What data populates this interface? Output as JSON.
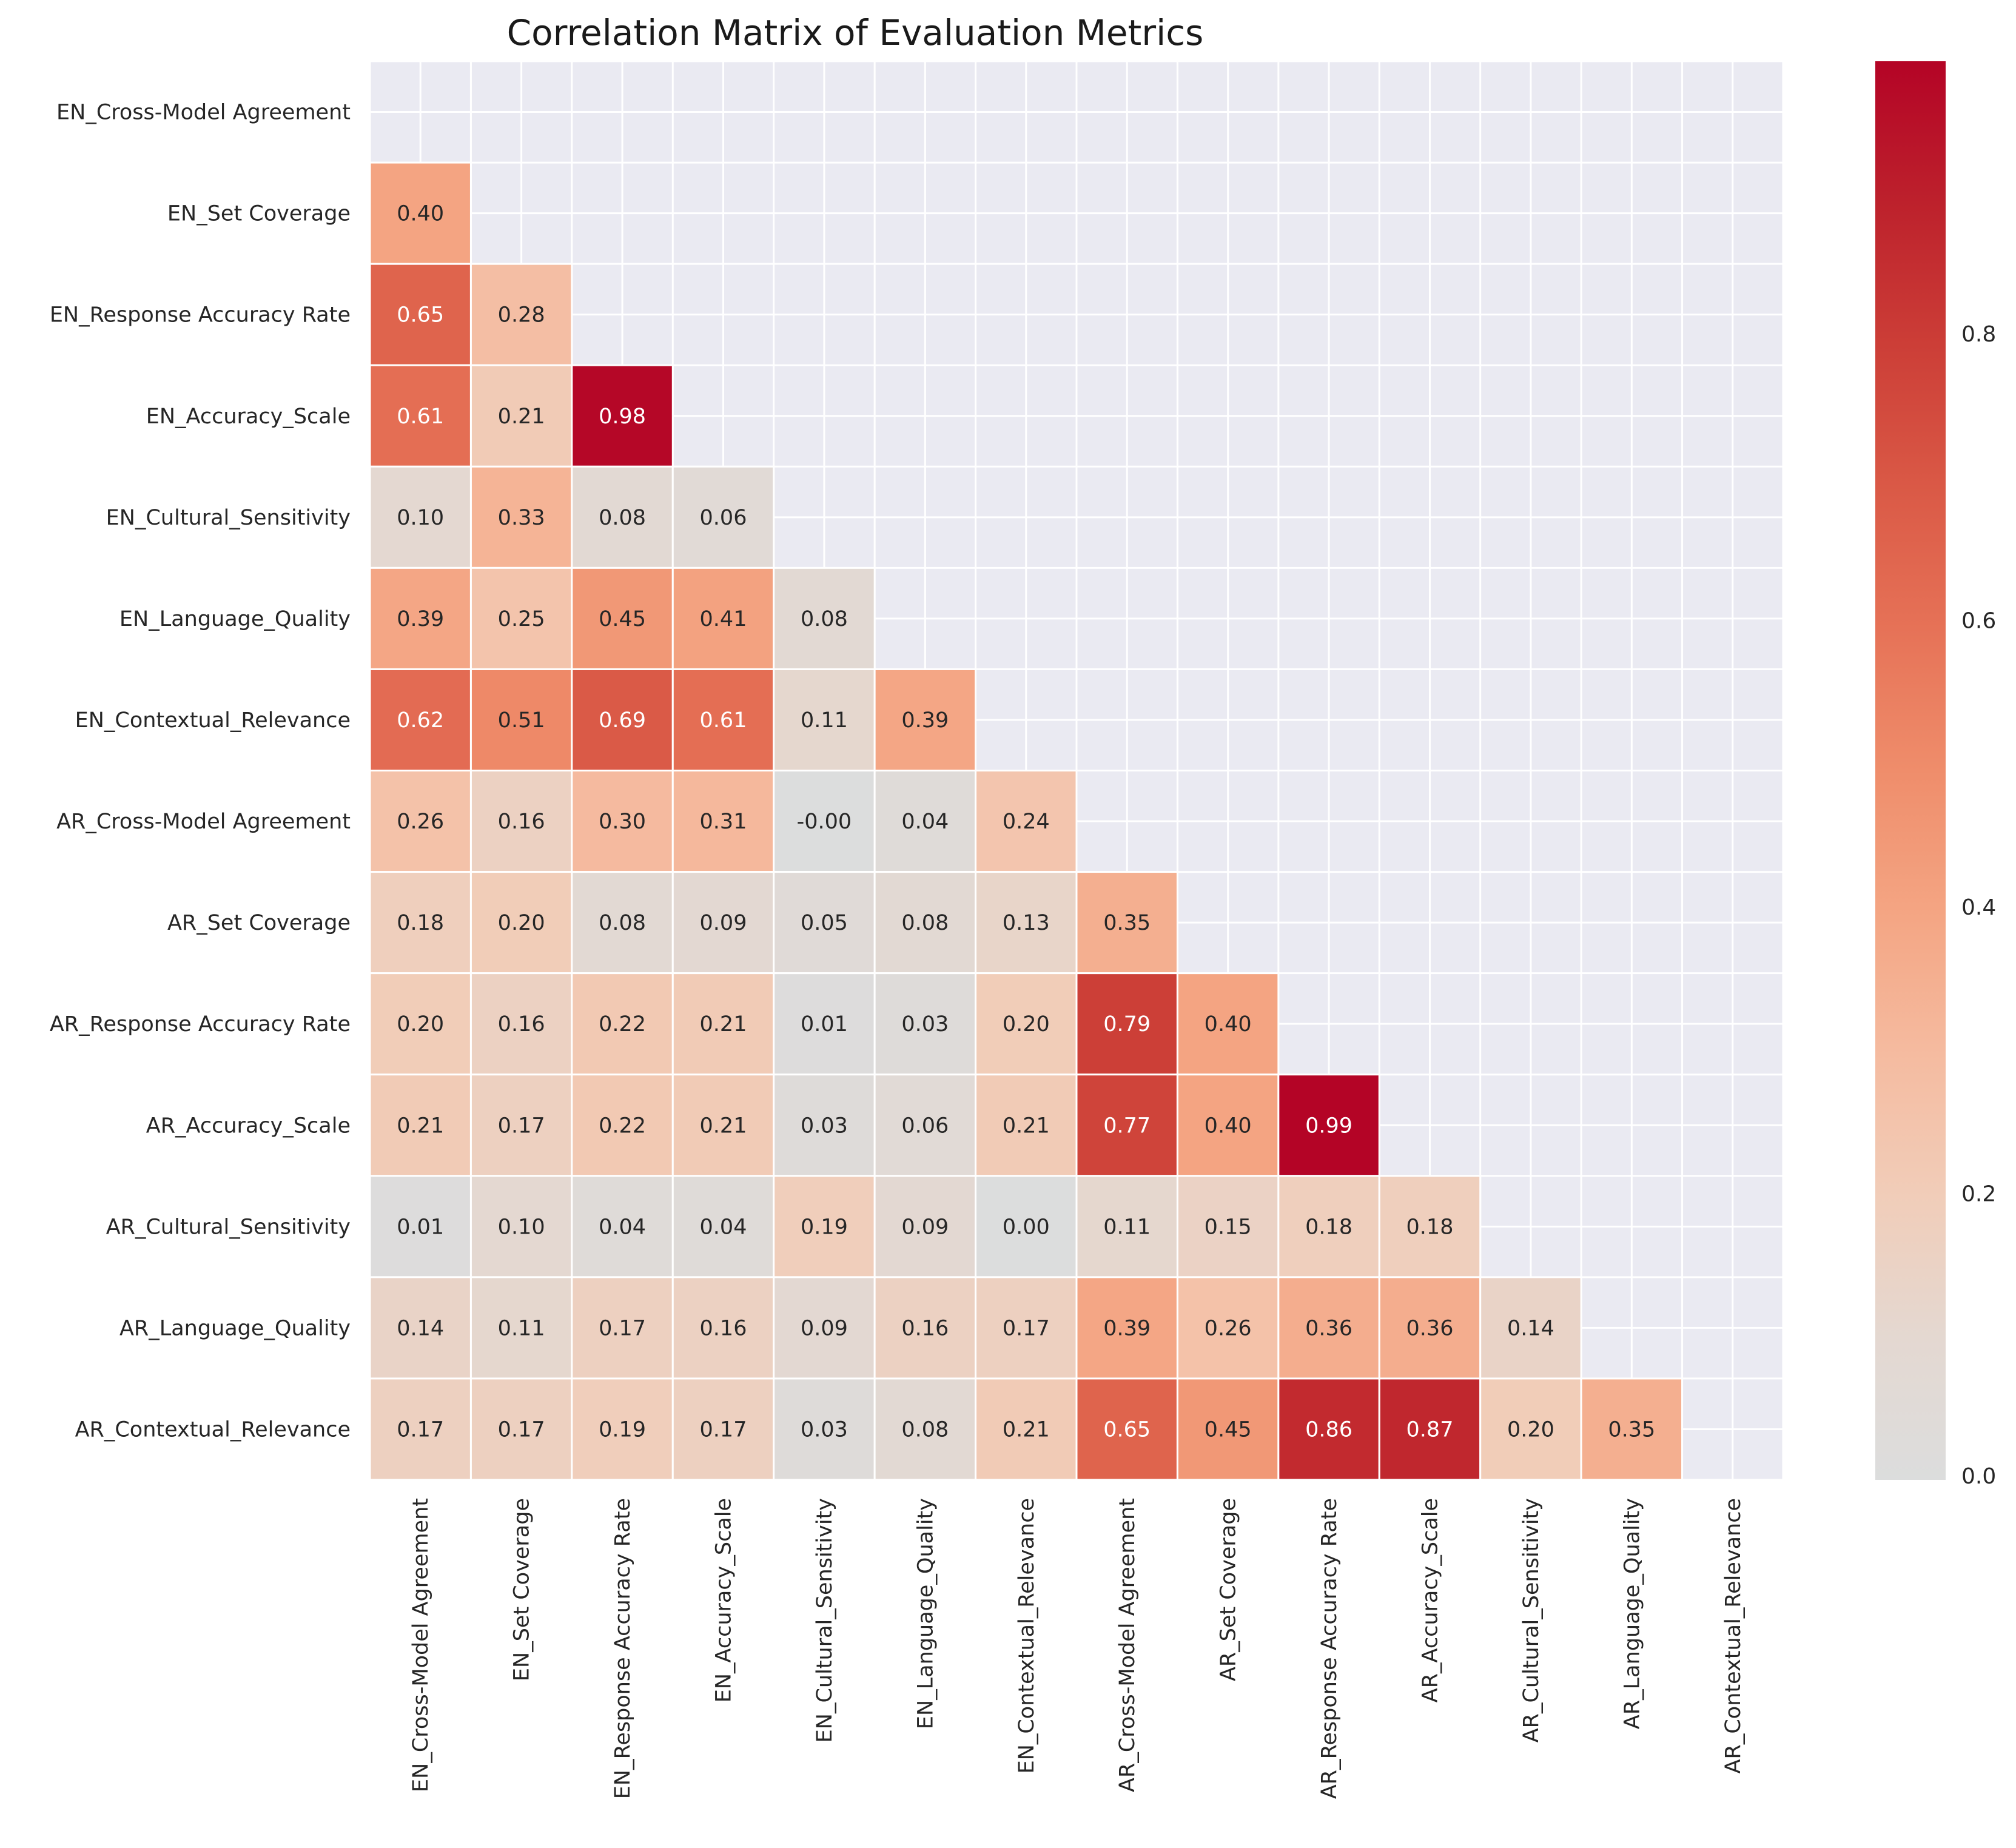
{
  "chart_data": {
    "type": "heatmap",
    "title": "Correlation Matrix of Evaluation Metrics",
    "xlabel": "",
    "ylabel": "",
    "labels": [
      "EN_Cross-Model Agreement",
      "EN_Set Coverage",
      "EN_Response Accuracy Rate",
      "EN_Accuracy_Scale",
      "EN_Cultural_Sensitivity",
      "EN_Language_Quality",
      "EN_Contextual_Relevance",
      "AR_Cross-Model Agreement",
      "AR_Set Coverage",
      "AR_Response Accuracy Rate",
      "AR_Accuracy_Scale",
      "AR_Cultural_Sensitivity",
      "AR_Language_Quality",
      "AR_Contextual_Relevance"
    ],
    "mask": "upper-triangle-including-diagonal",
    "lower_triangle": [
      [],
      [
        0.4
      ],
      [
        0.65,
        0.28
      ],
      [
        0.61,
        0.21,
        0.98
      ],
      [
        0.1,
        0.33,
        0.08,
        0.06
      ],
      [
        0.39,
        0.25,
        0.45,
        0.41,
        0.08
      ],
      [
        0.62,
        0.51,
        0.69,
        0.61,
        0.11,
        0.39
      ],
      [
        0.26,
        0.16,
        0.3,
        0.31,
        -0.0,
        0.04,
        0.24
      ],
      [
        0.18,
        0.2,
        0.08,
        0.09,
        0.05,
        0.08,
        0.13,
        0.35
      ],
      [
        0.2,
        0.16,
        0.22,
        0.21,
        0.01,
        0.03,
        0.2,
        0.79,
        0.4
      ],
      [
        0.21,
        0.17,
        0.22,
        0.21,
        0.03,
        0.06,
        0.21,
        0.77,
        0.4,
        0.99
      ],
      [
        0.01,
        0.1,
        0.04,
        0.04,
        0.19,
        0.09,
        0.0,
        0.11,
        0.15,
        0.18,
        0.18
      ],
      [
        0.14,
        0.11,
        0.17,
        0.16,
        0.09,
        0.16,
        0.17,
        0.39,
        0.26,
        0.36,
        0.36,
        0.14
      ],
      [
        0.17,
        0.17,
        0.19,
        0.17,
        0.03,
        0.08,
        0.21,
        0.65,
        0.45,
        0.86,
        0.87,
        0.2,
        0.35
      ]
    ],
    "value_format": "0.00",
    "colormap": "coolwarm",
    "colors": {
      "low": "#dcdddd",
      "high": "#b40426",
      "background": "#eaeaf2",
      "grid": "#ffffff"
    },
    "colorbar": {
      "range": [
        0,
        0.99
      ],
      "ticks": [
        0.0,
        0.2,
        0.4,
        0.6,
        0.8
      ],
      "tick_labels": [
        "0.0",
        "0.2",
        "0.4",
        "0.6",
        "0.8"
      ]
    },
    "grid": true
  }
}
